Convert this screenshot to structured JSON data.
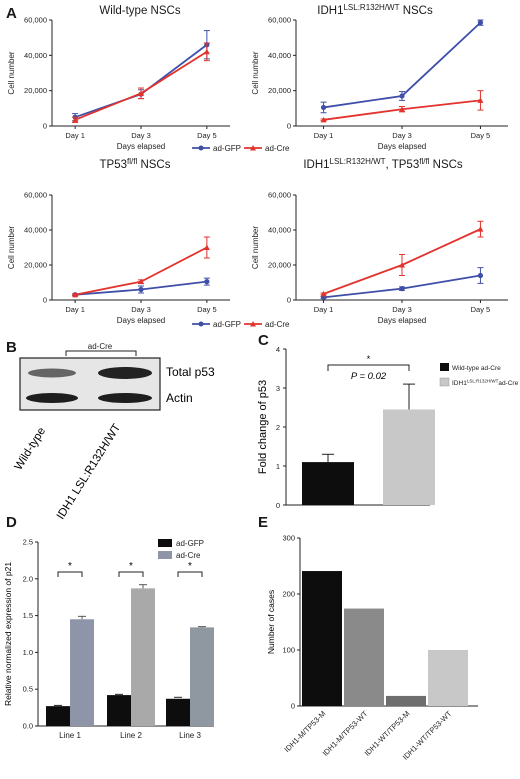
{
  "panel_labels": {
    "a": "A",
    "b": "B",
    "c": "C",
    "d": "D",
    "e": "E"
  },
  "legend": {
    "gfp": "ad-GFP",
    "cre": "ad-Cre"
  },
  "colors": {
    "gfp": "#3f4fa8",
    "cre": "#e2332c"
  },
  "western": {
    "bracket_label": "ad-Cre",
    "band_labels": [
      "Total p53",
      "Actin"
    ],
    "lane_labels": [
      "Wild-type",
      "IDH1 LSL:R132H/WT"
    ]
  },
  "chart_data": [
    {
      "id": "A1",
      "type": "line",
      "title": "Wild-type NSCs",
      "xlabel": "Days elapsed",
      "ylabel": "Cell number",
      "categories": [
        "Day 1",
        "Day 3",
        "Day 5"
      ],
      "ylim": [
        0,
        60000
      ],
      "yticks": [
        "0",
        "20,000",
        "40,000",
        "60,000"
      ],
      "series": [
        {
          "name": "ad-GFP",
          "values": [
            5000,
            18000,
            46000
          ],
          "errors": [
            2000,
            2500,
            8000
          ]
        },
        {
          "name": "ad-Cre",
          "values": [
            3500,
            18500,
            42000
          ],
          "errors": [
            1500,
            3000,
            5000
          ]
        }
      ]
    },
    {
      "id": "A2",
      "type": "line",
      "title_main": "IDH1",
      "title_sup": "LSL:R132H/WT",
      "title_end": " NSCs",
      "xlabel": "Days elapsed",
      "ylabel": "Cell number",
      "categories": [
        "Day 1",
        "Day 3",
        "Day 5"
      ],
      "ylim": [
        0,
        60000
      ],
      "yticks": [
        "0",
        "20,000",
        "40,000",
        "60,000"
      ],
      "series": [
        {
          "name": "ad-GFP",
          "values": [
            10500,
            17000,
            58500
          ],
          "errors": [
            3000,
            2500,
            1500
          ]
        },
        {
          "name": "ad-Cre",
          "values": [
            3500,
            9500,
            14500
          ],
          "errors": [
            500,
            1500,
            5500
          ]
        }
      ]
    },
    {
      "id": "A3",
      "type": "line",
      "title_main": "TP53",
      "title_sup": "fl/fl",
      "title_end": " NSCs",
      "xlabel": "Days elapsed",
      "ylabel": "Cell number",
      "categories": [
        "Day 1",
        "Day 3",
        "Day 5"
      ],
      "ylim": [
        0,
        60000
      ],
      "yticks": [
        "0",
        "20,000",
        "40,000",
        "60,000"
      ],
      "series": [
        {
          "name": "ad-GFP",
          "values": [
            3000,
            6000,
            10500
          ],
          "errors": [
            500,
            2000,
            2000
          ]
        },
        {
          "name": "ad-Cre",
          "values": [
            3000,
            10500,
            30000
          ],
          "errors": [
            500,
            1000,
            6000
          ]
        }
      ]
    },
    {
      "id": "A4",
      "type": "line",
      "title_main": "IDH1",
      "title_sup": "LSL:R132H/WT",
      "title_mid": ", TP53",
      "title_sup2": "fl/fl",
      "title_end": " NSCs",
      "xlabel": "Days elapsed",
      "ylabel": "Cell number",
      "categories": [
        "Day 1",
        "Day 3",
        "Day 5"
      ],
      "ylim": [
        0,
        60000
      ],
      "yticks": [
        "0",
        "20,000",
        "40,000",
        "60,000"
      ],
      "series": [
        {
          "name": "ad-GFP",
          "values": [
            1500,
            6500,
            14000
          ],
          "errors": [
            500,
            1000,
            4500
          ]
        },
        {
          "name": "ad-Cre",
          "values": [
            3500,
            20000,
            40500
          ],
          "errors": [
            500,
            6000,
            4500
          ]
        }
      ]
    },
    {
      "id": "C",
      "type": "bar",
      "ylabel": "Fold change of p53",
      "ylim": [
        0,
        4
      ],
      "yticks": [
        "0",
        "1",
        "2",
        "3",
        "4"
      ],
      "categories": [
        "Wild-type ad-Cre",
        "IDH1 LSL:R132H/WT ad-Cre"
      ],
      "values": [
        1.1,
        2.45
      ],
      "errors": [
        0.2,
        0.65
      ],
      "legend": [
        {
          "name": "Wild-type ad-Cre",
          "color": "#0d0d0d"
        },
        {
          "name_main": "IDH1",
          "name_sup": "LSL:R132H/WT",
          "name_end": "ad-Cre",
          "color": "#c8c8c8"
        }
      ],
      "annotation_star": "*",
      "annotation_p": "P = 0.02"
    },
    {
      "id": "D",
      "type": "bar",
      "ylabel": "Relative normalized expression of p21",
      "ylim": [
        0,
        2.5
      ],
      "yticks": [
        "0.0",
        "0.5",
        "1.0",
        "1.5",
        "2.0",
        "2.5"
      ],
      "categories": [
        "Line 1",
        "Line 2",
        "Line 3"
      ],
      "series": [
        {
          "name": "ad-GFP",
          "values": [
            0.27,
            0.42,
            0.37
          ],
          "errors": [
            0.01,
            0.01,
            0.02
          ]
        },
        {
          "name": "ad-Cre",
          "values": [
            1.45,
            1.87,
            1.34
          ],
          "errors": [
            0.04,
            0.05,
            0.01
          ]
        }
      ],
      "cre_colors": [
        "#8f95a8",
        "#a9a9a9",
        "#8f97a0"
      ],
      "gfp_color": "#0d0d0d",
      "annotation_star": "*"
    },
    {
      "id": "E",
      "type": "bar",
      "ylabel": "Number of cases",
      "ylim": [
        0,
        300
      ],
      "yticks": [
        "0",
        "100",
        "200",
        "300"
      ],
      "categories": [
        "IDH1-M/TP53-M",
        "IDH1-M/TP53-WT",
        "IDH1-WT/TP53-M",
        "IDH1-WT/TP53-WT"
      ],
      "values": [
        241,
        174,
        18,
        100
      ],
      "colors": [
        "#0d0d0d",
        "#8a8a8a",
        "#6e6e6e",
        "#c8c8c8"
      ]
    }
  ]
}
